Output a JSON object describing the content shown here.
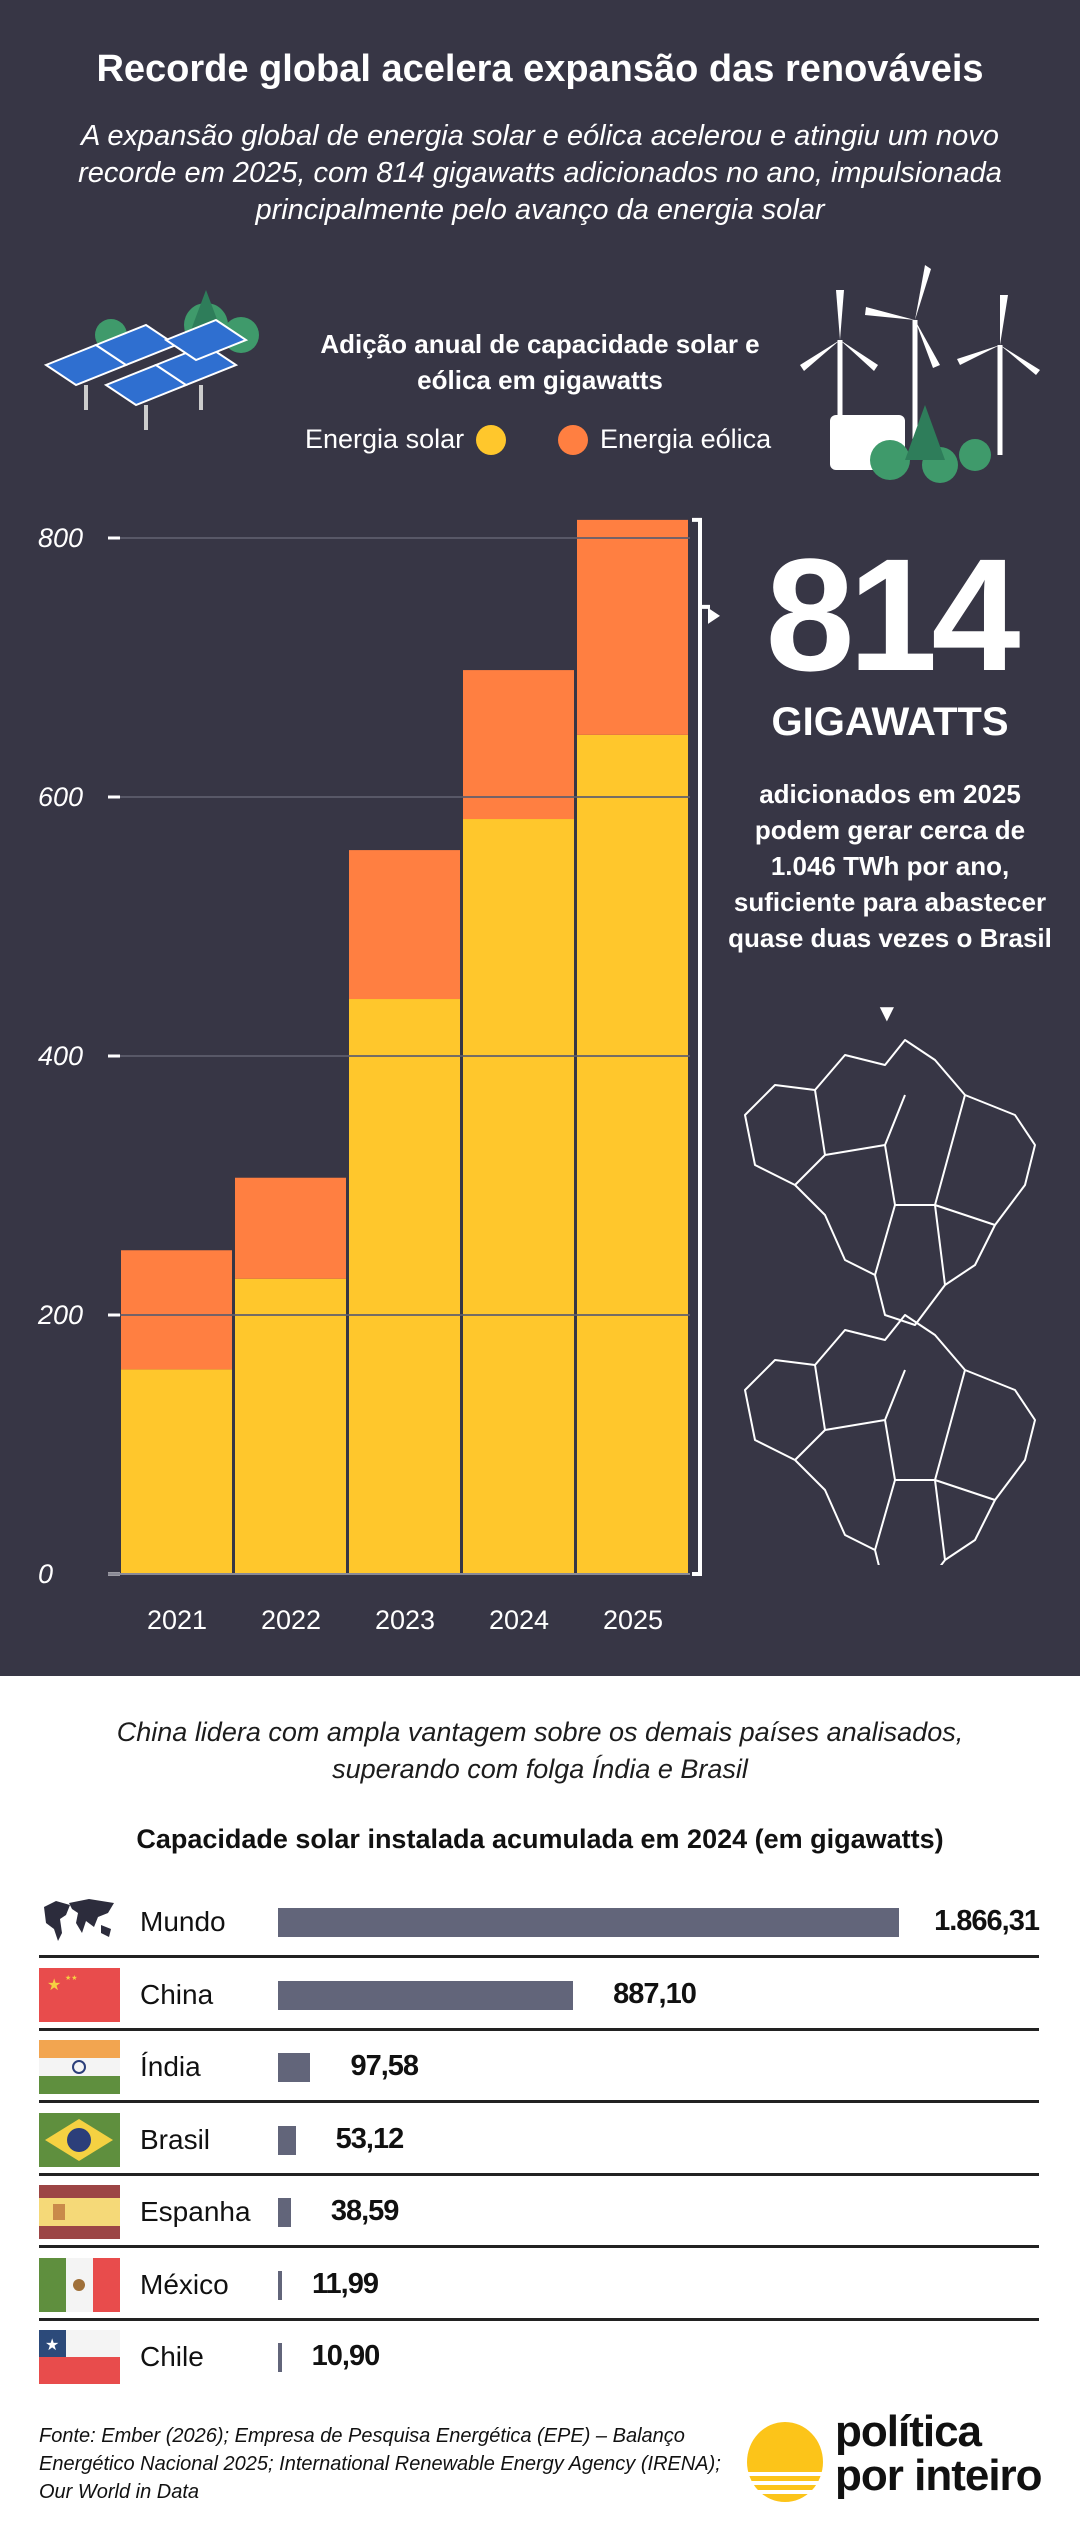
{
  "header": {
    "title": "Recorde global acelera expansão das renováveis",
    "subtitle": "A expansão global de energia solar e eólica acelerou e atingiu um novo recorde em 2025, com 814 gigawatts adicionados no ano, impulsionada principalmente pelo avanço da energia solar"
  },
  "chart_data": [
    {
      "type": "bar",
      "stacked": true,
      "title": "Adição anual de capacidade solar e eólica em gigawatts",
      "categories": [
        "2021",
        "2022",
        "2023",
        "2024",
        "2025"
      ],
      "series": [
        {
          "name": "Energia solar",
          "color": "#ffc72c",
          "values": [
            158,
            228,
            444,
            583,
            648
          ]
        },
        {
          "name": "Energia eólica",
          "color": "#ff7f41",
          "values": [
            92,
            78,
            115,
            115,
            166
          ]
        }
      ],
      "totals": [
        250,
        306,
        559,
        698,
        814
      ],
      "yticks": [
        "0",
        "200",
        "400",
        "600",
        "800"
      ],
      "ylim": [
        0,
        815
      ],
      "grid": true,
      "legend": "top"
    },
    {
      "type": "bar",
      "orientation": "horizontal",
      "title": "Capacidade solar instalada acumulada em 2024 (em gigawatts)",
      "categories": [
        "Mundo",
        "China",
        "Índia",
        "Brasil",
        "Espanha",
        "México",
        "Chile"
      ],
      "values": [
        1866.31,
        887.1,
        97.58,
        53.12,
        38.59,
        11.99,
        10.9
      ],
      "labels": [
        "1.866,31",
        "887,10",
        "97,58",
        "53,12",
        "38,59",
        "11,99",
        "10,90"
      ],
      "color": "#62657a"
    }
  ],
  "callout": {
    "number": "814",
    "unit": "GIGAWATTS",
    "text": "adicionados em 2025 podem gerar cerca de 1.046 TWh por ano, suficiente para abastecer quase duas vezes o Brasil"
  },
  "section2": {
    "intro": "China lidera com ampla vantagem sobre os demais países analisados, superando com folga Índia e Brasil"
  },
  "footer": {
    "source": "Fonte: Ember (2026); Empresa de Pesquisa Energética (EPE) – Balanço Energético Nacional 2025; International Renewable Energy Agency (IRENA); Our World in Data",
    "logo_line1": "política",
    "logo_line2": "por inteiro"
  }
}
